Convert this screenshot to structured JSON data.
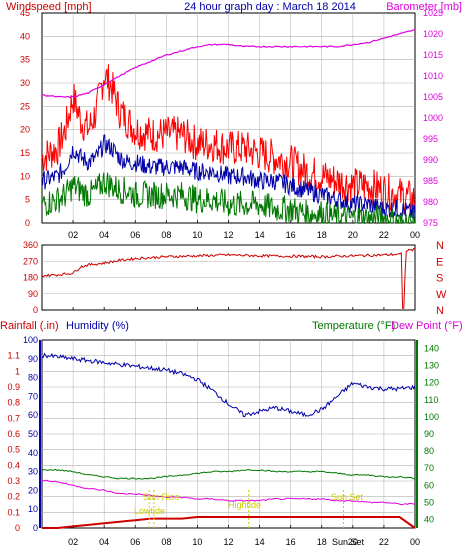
{
  "header": {
    "left": "Windspeed [mph]",
    "center": "24 hour graph day : March 18 2014",
    "right": "Barometer [mb]"
  },
  "panel3_labels": {
    "rainfall": "Rainfall (.in)",
    "humidity": "Humidity (%)",
    "temperature": "Temperature (°F)",
    "dewpoint": "Dew Point (°F)"
  },
  "x_ticks": [
    "02",
    "04",
    "06",
    "08",
    "10",
    "12",
    "14",
    "16",
    "18",
    "20",
    "22",
    "00"
  ],
  "compass_labels": [
    "N",
    "W",
    "S",
    "E",
    "N"
  ],
  "annotations": {
    "sun_rise": "Sun Rise",
    "sun_set": "Sun Set",
    "lowtide": "Lowtide",
    "hightide": "Hightide",
    "sun_set_bottom": "Sun Set"
  },
  "colors": {
    "wind_gust": "#ff0000",
    "wind_avg": "#0000aa",
    "wind_low": "#007700",
    "barometer": "#dd00dd",
    "direction": "#cc0000",
    "humidity": "#0000aa",
    "temperature": "#007700",
    "dewpoint": "#dd00dd",
    "rainfall": "#cc0000",
    "annotation": "#cccc00",
    "grid": "#b0b0b0"
  },
  "chart_data": [
    {
      "type": "line",
      "title": "24 hour graph day : March 18 2014",
      "ylabel": "Windspeed [mph]",
      "y2label": "Barometer [mb]",
      "ylim": [
        0,
        45
      ],
      "y2lim": [
        975,
        1025
      ],
      "y_ticks": [
        0,
        5,
        10,
        15,
        20,
        25,
        30,
        35,
        40,
        45
      ],
      "y2_ticks": [
        975,
        980,
        985,
        990,
        995,
        1000,
        1005,
        1010,
        1015,
        1020,
        1025
      ],
      "x": [
        0,
        1,
        1.5,
        2,
        2.5,
        3,
        3.5,
        4,
        4.5,
        5,
        5.5,
        6,
        7,
        8,
        9,
        10,
        11,
        12,
        13,
        14,
        15,
        16,
        17,
        18,
        19,
        20,
        21,
        22,
        23,
        24
      ],
      "series": [
        {
          "key": "gust",
          "values": [
            14,
            16,
            20,
            27,
            22,
            20,
            24,
            32,
            29,
            24,
            22,
            20,
            19,
            19,
            19,
            17,
            17,
            16,
            16,
            15,
            14,
            13,
            11,
            10,
            9,
            8,
            8,
            7,
            6,
            5
          ]
        },
        {
          "key": "avg",
          "values": [
            9,
            10,
            12,
            16,
            14,
            13,
            14,
            17,
            16,
            14,
            13,
            13,
            12,
            12,
            12,
            11,
            11,
            10,
            10,
            9,
            9,
            8,
            7,
            6,
            5,
            4,
            4,
            3,
            3,
            2
          ]
        },
        {
          "key": "low",
          "values": [
            4,
            5,
            6,
            8,
            7,
            6,
            7,
            9,
            8,
            7,
            7,
            6,
            6,
            6,
            6,
            5,
            5,
            4,
            4,
            4,
            3,
            3,
            2,
            2,
            1,
            1,
            1,
            1,
            0,
            0
          ]
        },
        {
          "key": "barometer",
          "values": [
            1005.5,
            1005,
            1005,
            1005,
            1005.5,
            1006,
            1007,
            1008,
            1009,
            1010,
            1011,
            1012,
            1013.5,
            1015,
            1016,
            1017,
            1017.5,
            1017.5,
            1017,
            1017,
            1017,
            1017,
            1017,
            1017,
            1017,
            1017.5,
            1018,
            1019,
            1020,
            1021
          ]
        }
      ]
    },
    {
      "type": "line",
      "ylabel": "Wind direction",
      "ylim": [
        0,
        360
      ],
      "y_ticks": [
        0,
        90,
        180,
        270,
        360
      ],
      "x": [
        0,
        1,
        2,
        2.5,
        3,
        4,
        5,
        6,
        8,
        10,
        12,
        14,
        16,
        18,
        20,
        22,
        23.2,
        23.3,
        23.4,
        24
      ],
      "series": [
        {
          "key": "direction",
          "values": [
            190,
            195,
            205,
            240,
            250,
            260,
            275,
            285,
            295,
            300,
            305,
            300,
            298,
            295,
            300,
            305,
            310,
            10,
            330,
            335
          ]
        }
      ]
    },
    {
      "type": "line",
      "ylabel": "Rainfall (.in)",
      "y_ticks_left": [
        0,
        0.1,
        0.2,
        0.3,
        0.4,
        0.5,
        0.6,
        0.7,
        0.8,
        0.9,
        1,
        1.1
      ],
      "y_ticks_hum": [
        0,
        10,
        20,
        30,
        40,
        50,
        60,
        70,
        80,
        90,
        100
      ],
      "y_ticks_temp": [
        40,
        50,
        60,
        70,
        80,
        90,
        100,
        110,
        120,
        130,
        140
      ],
      "rain_ylim": [
        0,
        1.2
      ],
      "hum_ylim": [
        0,
        100
      ],
      "temp_ylim": [
        35,
        145
      ],
      "x": [
        0,
        1,
        2,
        3,
        4,
        5,
        6,
        7,
        8,
        9,
        10,
        11,
        12,
        13,
        14,
        15,
        16,
        17,
        18,
        19,
        20,
        21,
        22,
        23,
        24
      ],
      "series": [
        {
          "key": "humidity",
          "values": [
            92,
            91,
            90,
            89,
            88,
            87,
            86,
            85,
            84,
            82,
            79,
            73,
            66,
            60,
            62,
            64,
            62,
            60,
            63,
            70,
            77,
            75,
            74,
            74,
            75
          ]
        },
        {
          "key": "temperature",
          "values": [
            69,
            69,
            68,
            66,
            65,
            64,
            64,
            64,
            65,
            66,
            67,
            68,
            68,
            69,
            69,
            68,
            68,
            68,
            68,
            67,
            66,
            66,
            65,
            65,
            64
          ]
        },
        {
          "key": "dewpoint",
          "values": [
            63,
            62,
            60,
            58,
            57,
            55,
            55,
            54,
            53,
            53,
            52,
            52,
            51,
            51,
            51,
            52,
            52,
            52,
            52,
            51,
            51,
            50,
            50,
            49,
            49
          ]
        },
        {
          "key": "rainfall",
          "values": [
            0,
            0,
            0.01,
            0.02,
            0.03,
            0.04,
            0.05,
            0.06,
            0.06,
            0.06,
            0.07,
            0.07,
            0.07,
            0.07,
            0.07,
            0.07,
            0.07,
            0.07,
            0.07,
            0.07,
            0.07,
            0.07,
            0.07,
            0.07,
            0
          ]
        }
      ],
      "events": [
        {
          "key": "sun_rise",
          "x": 7.2
        },
        {
          "key": "lowtide",
          "x": 6.9
        },
        {
          "key": "hightide",
          "x": 13.3
        },
        {
          "key": "sun_set",
          "x": 19.4
        }
      ]
    }
  ]
}
